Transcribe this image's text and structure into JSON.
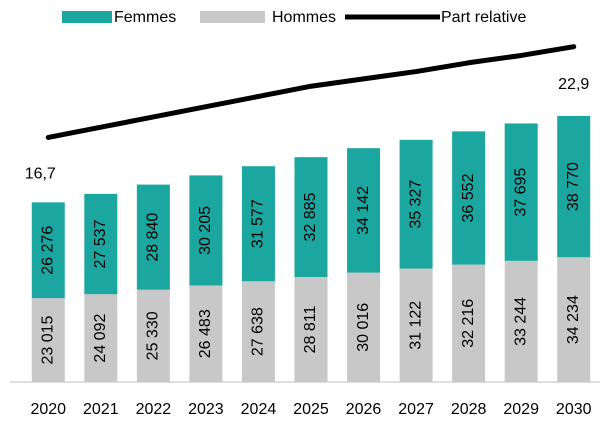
{
  "chart_data": {
    "type": "bar",
    "stacked": true,
    "categories": [
      "2020",
      "2021",
      "2022",
      "2023",
      "2024",
      "2025",
      "2026",
      "2027",
      "2028",
      "2029",
      "2030"
    ],
    "series": [
      {
        "name": "Hommes",
        "color": "#c8c8c8",
        "values": [
          23015,
          24092,
          25330,
          26483,
          27638,
          28811,
          30016,
          31122,
          32216,
          33244,
          34234
        ],
        "value_labels": [
          "23 015",
          "24 092",
          "25 330",
          "26 483",
          "27 638",
          "28 811",
          "30 016",
          "31 122",
          "32 216",
          "33 244",
          "34 234"
        ]
      },
      {
        "name": "Femmes",
        "color": "#1ca6a0",
        "values": [
          26276,
          27537,
          28840,
          30205,
          31577,
          32885,
          34142,
          35327,
          36552,
          37695,
          38770
        ],
        "value_labels": [
          "26 276",
          "27 537",
          "28 840",
          "30 205",
          "31 577",
          "32 885",
          "34 142",
          "35 327",
          "36 552",
          "37 695",
          "38 770"
        ]
      },
      {
        "name": "Part relative",
        "type": "line",
        "axis": "y2",
        "color": "#000000",
        "values": [
          16.7,
          17.4,
          18.1,
          18.8,
          19.5,
          20.2,
          20.7,
          21.2,
          21.8,
          22.3,
          22.9
        ],
        "value_labels": [
          "16,7",
          null,
          null,
          null,
          null,
          null,
          null,
          null,
          null,
          null,
          "22,9"
        ]
      }
    ],
    "ylim": [
      0,
      90000
    ],
    "y2lim": [
      0,
      22.4
    ],
    "legend": "top"
  }
}
